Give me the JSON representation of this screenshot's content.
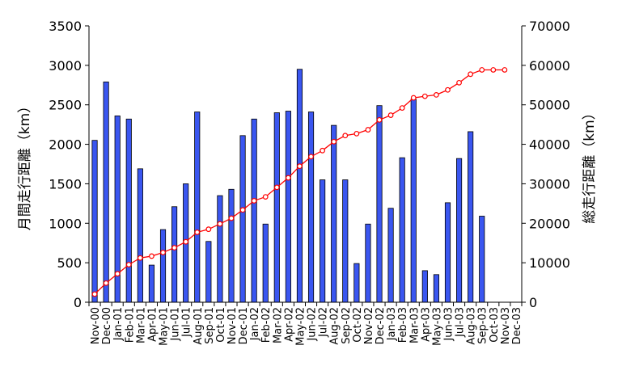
{
  "chart_data": {
    "type": "bar",
    "categories": [
      "Nov-00",
      "Dec-00",
      "Jan-01",
      "Feb-01",
      "Mar-01",
      "Apr-01",
      "May-01",
      "Jun-01",
      "Jul-01",
      "Aug-01",
      "Sep-01",
      "Oct-01",
      "Nov-01",
      "Dec-01",
      "Jan-02",
      "Feb-02",
      "Mar-02",
      "Apr-02",
      "May-02",
      "Jun-02",
      "Jul-02",
      "Aug-02",
      "Sep-02",
      "Oct-02",
      "Nov-02",
      "Dec-02",
      "Jan-03",
      "Feb-03",
      "Mar-03",
      "Apr-03",
      "May-03",
      "Jun-03",
      "Jul-03",
      "Aug-03",
      "Sep-03",
      "Oct-03",
      "Nov-03",
      "Dec-03"
    ],
    "title": "",
    "ylabel": "月間走行距離（km）",
    "y2label": "総走行距離（km）",
    "ylim": [
      0,
      3500
    ],
    "y2lim": [
      0,
      70000
    ],
    "yticks": [
      0,
      500,
      1000,
      1500,
      2000,
      2500,
      3000,
      3500
    ],
    "y2ticks": [
      0,
      10000,
      20000,
      30000,
      40000,
      50000,
      60000,
      70000
    ],
    "grid": false,
    "bar_color": "#3a56f0",
    "line_color": "#ff0000",
    "series": [
      {
        "type": "bar",
        "axis": "left",
        "values": [
          2050,
          2790,
          2360,
          2320,
          1690,
          470,
          920,
          1210,
          1500,
          2410,
          770,
          1350,
          1430,
          2110,
          2320,
          990,
          2400,
          2420,
          2950,
          2410,
          1550,
          2240,
          1550,
          490,
          990,
          2490,
          1190,
          1830,
          2570,
          400,
          350,
          1260,
          1820,
          2160,
          1090,
          null,
          null,
          null
        ]
      },
      {
        "type": "line",
        "axis": "right",
        "values": [
          2050,
          4840,
          7200,
          9520,
          11210,
          11680,
          12600,
          13810,
          15310,
          17720,
          18490,
          19840,
          21270,
          23380,
          25700,
          26690,
          29090,
          31510,
          34460,
          36870,
          38420,
          40660,
          42210,
          42700,
          43690,
          46180,
          47370,
          49200,
          51770,
          52170,
          52520,
          53780,
          55600,
          57760,
          58850,
          58850,
          58850,
          null
        ]
      }
    ]
  }
}
